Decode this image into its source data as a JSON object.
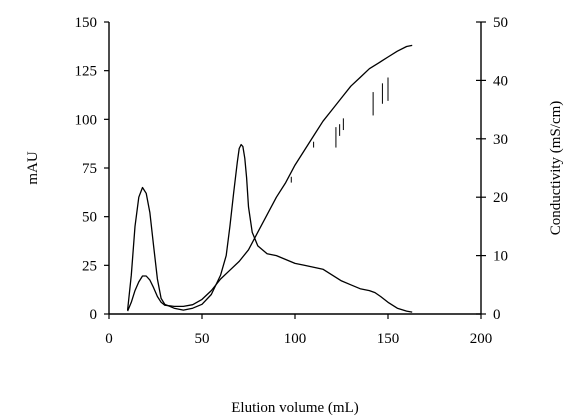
{
  "chart_data": {
    "type": "line",
    "xlabel": "Elution volume (mL)",
    "ylabel": "mAU",
    "y2label": "Conductivity (mS/cm)",
    "xlim": [
      0,
      200
    ],
    "ylim": [
      0,
      150
    ],
    "y2lim": [
      0,
      50
    ],
    "xticks": [
      "0",
      "50",
      "100",
      "150",
      "200"
    ],
    "yticks": [
      "0",
      "25",
      "50",
      "75",
      "100",
      "125",
      "150"
    ],
    "y2ticks": [
      "0",
      "10",
      "20",
      "30",
      "40",
      "50"
    ],
    "grid": false,
    "legend": "none",
    "series": [
      {
        "axis": "left",
        "x": [
          10,
          12,
          14,
          16,
          18,
          20,
          22,
          24,
          26,
          28,
          30,
          35,
          40,
          45,
          50,
          55,
          60,
          63,
          65,
          67,
          69,
          70,
          71,
          72,
          73,
          74,
          75,
          77,
          80,
          85,
          90,
          95,
          100,
          105,
          110,
          115,
          120,
          125,
          130,
          135,
          140,
          143,
          146,
          150,
          155,
          160,
          163
        ],
        "y": [
          2,
          20,
          45,
          60,
          65,
          62,
          52,
          35,
          18,
          8,
          5,
          3,
          2,
          3,
          5,
          10,
          20,
          30,
          45,
          62,
          78,
          85,
          87,
          86,
          80,
          70,
          55,
          42,
          35,
          31,
          30,
          28,
          26,
          25,
          24,
          23,
          20,
          17,
          15,
          13,
          12,
          11,
          9,
          6,
          3,
          1.5,
          1
        ]
      },
      {
        "axis": "right",
        "x": [
          10,
          12,
          14,
          16,
          18,
          20,
          22,
          24,
          26,
          28,
          30,
          35,
          40,
          45,
          50,
          55,
          60,
          65,
          70,
          75,
          80,
          85,
          90,
          95,
          100,
          105,
          110,
          115,
          120,
          125,
          130,
          135,
          140,
          145,
          150,
          155,
          160,
          163
        ],
        "y": [
          0.5,
          2,
          4,
          5.5,
          6.5,
          6.5,
          5.8,
          4.5,
          3,
          2,
          1.5,
          1.3,
          1.3,
          1.6,
          2.5,
          4,
          6,
          7.5,
          9,
          11,
          14,
          17,
          20,
          22.5,
          25.5,
          28,
          30.5,
          33,
          35,
          37,
          39,
          40.5,
          42,
          43,
          44,
          45,
          45.8,
          46
        ]
      }
    ],
    "conductivity_spikes": [
      {
        "x": 98,
        "top": 23.5,
        "bottom": 22.5
      },
      {
        "x": 110,
        "top": 29.5,
        "bottom": 28.5
      },
      {
        "x": 122,
        "top": 32,
        "bottom": 28.5
      },
      {
        "x": 124,
        "top": 32.5,
        "bottom": 30.5
      },
      {
        "x": 126,
        "top": 33.5,
        "bottom": 31.5
      },
      {
        "x": 142,
        "top": 38,
        "bottom": 34
      },
      {
        "x": 147,
        "top": 39.5,
        "bottom": 36
      },
      {
        "x": 150,
        "top": 40.5,
        "bottom": 36.5
      }
    ]
  }
}
